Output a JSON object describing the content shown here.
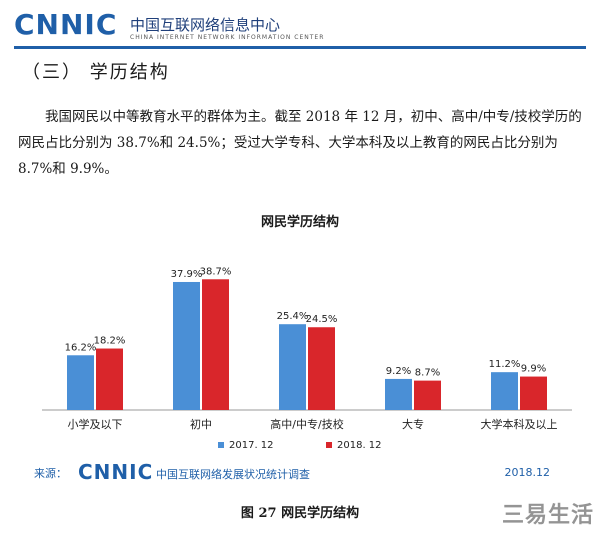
{
  "header": {
    "logo_text": "CNNIC",
    "org_name_cn": "中国互联网络信息中心",
    "org_name_en": "CHINA INTERNET NETWORK INFORMATION CENTER"
  },
  "section": {
    "title": "（三）   学历结构"
  },
  "paragraph": "我国网民以中等教育水平的群体为主。截至 2018 年 12 月，初中、高中/中专/技校学历的网民占比分别为 38.7%和 24.5%；受过大学专科、大学本科及以上教育的网民占比分别为 8.7%和 9.9%。",
  "chart_data": {
    "type": "bar",
    "title": "网民学历结构",
    "categories": [
      "小学及以下",
      "初中",
      "高中/中专/技校",
      "大专",
      "大学本科及以上"
    ],
    "series": [
      {
        "name": "2017. 12",
        "values": [
          16.2,
          37.9,
          25.4,
          9.2,
          11.2
        ],
        "labels": [
          "16.2%",
          "37.9%",
          "25.4%",
          "9.2%",
          "11.2%"
        ],
        "color": "#4a8fd6"
      },
      {
        "name": "2018. 12",
        "values": [
          18.2,
          38.7,
          24.5,
          8.7,
          9.9
        ],
        "labels": [
          "18.2%",
          "38.7%",
          "24.5%",
          "8.7%",
          "9.9%"
        ],
        "color": "#d9262b"
      }
    ],
    "ylim": [
      0,
      45
    ],
    "grid": false,
    "legend_position": "bottom-center"
  },
  "source": {
    "label": "来源：",
    "logo_text": "CNNIC",
    "name": "中国互联网络发展状况统计调查",
    "date": "2018.12"
  },
  "caption": "图 27    网民学历结构",
  "watermark": "三易生活"
}
